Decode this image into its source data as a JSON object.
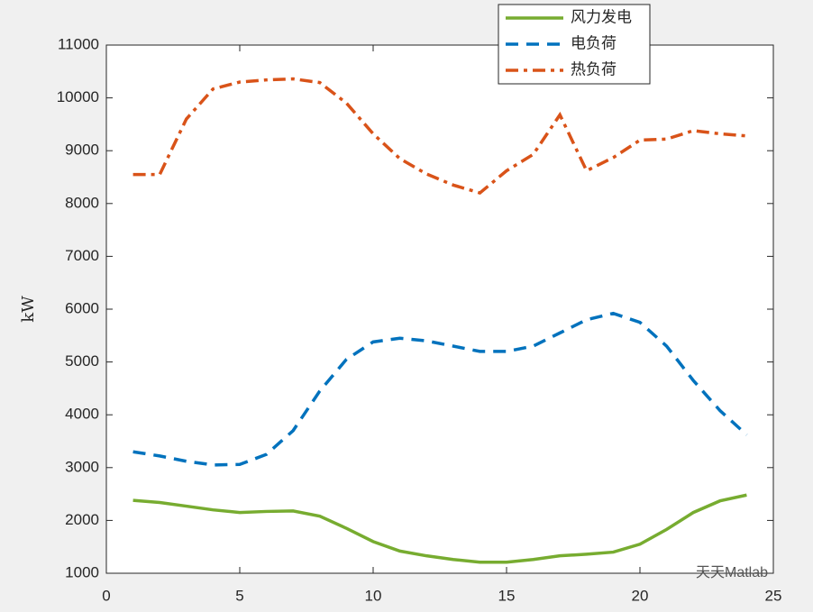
{
  "chart_data": {
    "type": "line",
    "ylabel": "kW",
    "watermark": "天天Matlab",
    "x": [
      1,
      2,
      3,
      4,
      5,
      6,
      7,
      8,
      9,
      10,
      11,
      12,
      13,
      14,
      15,
      16,
      17,
      18,
      19,
      20,
      21,
      22,
      23,
      24
    ],
    "series": [
      {
        "name": "风力发电",
        "color": "#77ac30",
        "dash": "solid",
        "values": [
          2380,
          2340,
          2270,
          2200,
          2150,
          2170,
          2180,
          2080,
          1850,
          1600,
          1420,
          1330,
          1260,
          1210,
          1210,
          1260,
          1330,
          1360,
          1400,
          1550,
          1830,
          2150,
          2370,
          2480
        ]
      },
      {
        "name": "电负荷",
        "color": "#0072bd",
        "dash": "dashed",
        "values": [
          3300,
          3220,
          3120,
          3050,
          3060,
          3250,
          3700,
          4450,
          5050,
          5380,
          5450,
          5400,
          5300,
          5200,
          5200,
          5300,
          5550,
          5800,
          5920,
          5750,
          5300,
          4650,
          4080,
          3620
        ]
      },
      {
        "name": "热负荷",
        "color": "#d95319",
        "dash": "dashdot",
        "values": [
          8550,
          8550,
          9600,
          10170,
          10300,
          10340,
          10360,
          10290,
          9900,
          9320,
          8850,
          8560,
          8350,
          8200,
          8620,
          8930,
          9680,
          8620,
          8870,
          9200,
          9220,
          9380,
          9320,
          9280
        ]
      }
    ],
    "xlim": [
      0,
      25
    ],
    "xticks": [
      0,
      5,
      10,
      15,
      20,
      25
    ],
    "ylim": [
      1000,
      11000
    ],
    "yticks": [
      1000,
      2000,
      3000,
      4000,
      5000,
      6000,
      7000,
      8000,
      9000,
      10000,
      11000
    ],
    "legend": "top"
  }
}
